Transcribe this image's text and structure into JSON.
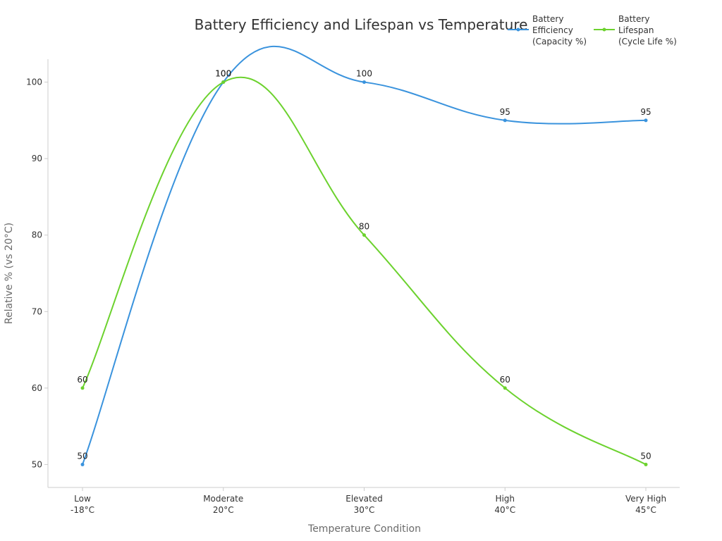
{
  "chart_data": {
    "type": "line",
    "title": "Battery Efficiency and Lifespan vs Temperature",
    "xlabel": "Temperature Condition",
    "ylabel": "Relative % (vs 20°C)",
    "categories": [
      [
        "Low",
        "-18°C"
      ],
      [
        "Moderate",
        "20°C"
      ],
      [
        "Elevated",
        "30°C"
      ],
      [
        "High",
        "40°C"
      ],
      [
        "Very High",
        "45°C"
      ]
    ],
    "y_ticks": [
      50,
      60,
      70,
      80,
      90,
      100
    ],
    "ylim": [
      47,
      103
    ],
    "grid": false,
    "legend_position": "top-right",
    "series": [
      {
        "name": [
          "Battery",
          "Efficiency",
          "(Capacity %)"
        ],
        "color": "#3a93dd",
        "values": [
          50,
          100,
          100,
          95,
          95
        ],
        "labels": [
          "50",
          "100",
          "100",
          "95",
          "95"
        ]
      },
      {
        "name": [
          "Battery",
          "Lifespan",
          "(Cycle Life %)"
        ],
        "color": "#6cd22e",
        "values": [
          60,
          100,
          80,
          60,
          50
        ],
        "labels": [
          "60",
          "100",
          "80",
          "60",
          "50"
        ]
      }
    ]
  }
}
